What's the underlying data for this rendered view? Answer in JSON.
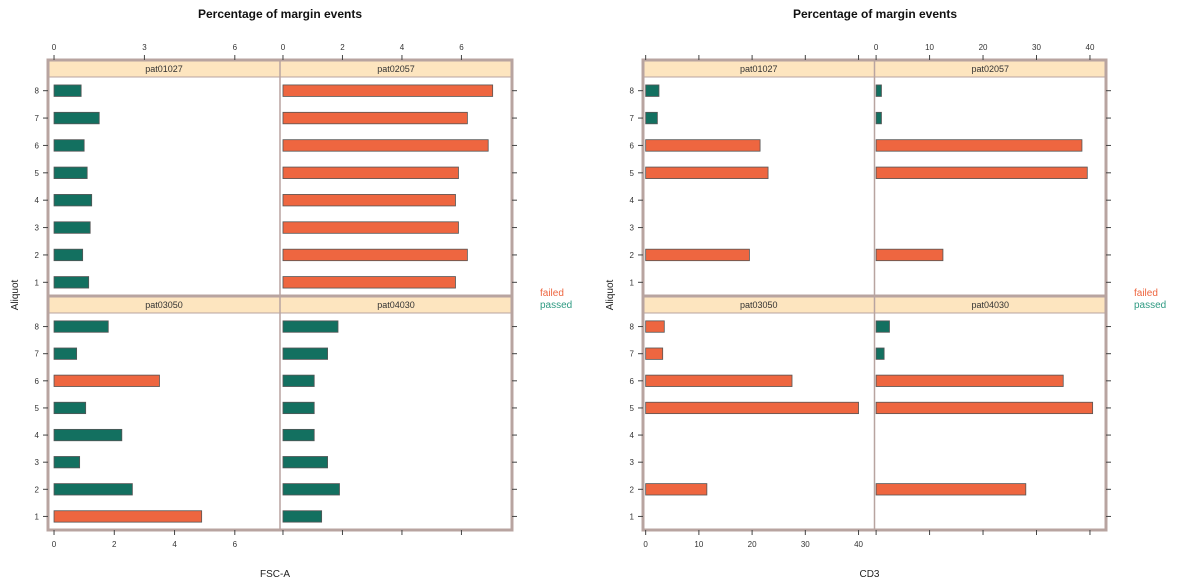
{
  "colors": {
    "failed": "#ee6640",
    "passed": "#137060",
    "strip": "#fde5bf",
    "frame": "#b8a4a0",
    "bar_border": "#555555",
    "legend_failed": "#ee6640",
    "legend_passed": "#2e9a82"
  },
  "legend": {
    "failed": "failed",
    "passed": "passed"
  },
  "chart_data": [
    {
      "type": "bar",
      "orientation": "horizontal",
      "title": "Percentage of margin events",
      "xlabel": "FSC-A",
      "ylabel": "Aliquot",
      "y_categories": [
        "1",
        "2",
        "3",
        "4",
        "5",
        "6",
        "7",
        "8"
      ],
      "panels": [
        {
          "strip": "pat01027",
          "row": 0,
          "col": 0,
          "xlim": [
            -0.2,
            7.5
          ],
          "bars": [
            {
              "aliquot": 8,
              "value": 0.9,
              "status": "passed"
            },
            {
              "aliquot": 7,
              "value": 1.5,
              "status": "passed"
            },
            {
              "aliquot": 6,
              "value": 1.0,
              "status": "passed"
            },
            {
              "aliquot": 5,
              "value": 1.1,
              "status": "passed"
            },
            {
              "aliquot": 4,
              "value": 1.25,
              "status": "passed"
            },
            {
              "aliquot": 3,
              "value": 1.2,
              "status": "passed"
            },
            {
              "aliquot": 2,
              "value": 0.95,
              "status": "passed"
            },
            {
              "aliquot": 1,
              "value": 1.15,
              "status": "passed"
            }
          ]
        },
        {
          "strip": "pat02057",
          "row": 0,
          "col": 1,
          "xlim": [
            -0.1,
            7.7
          ],
          "bars": [
            {
              "aliquot": 8,
              "value": 7.05,
              "status": "failed"
            },
            {
              "aliquot": 7,
              "value": 6.2,
              "status": "failed"
            },
            {
              "aliquot": 6,
              "value": 6.9,
              "status": "failed"
            },
            {
              "aliquot": 5,
              "value": 5.9,
              "status": "failed"
            },
            {
              "aliquot": 4,
              "value": 5.8,
              "status": "failed"
            },
            {
              "aliquot": 3,
              "value": 5.9,
              "status": "failed"
            },
            {
              "aliquot": 2,
              "value": 6.2,
              "status": "failed"
            },
            {
              "aliquot": 1,
              "value": 5.8,
              "status": "failed"
            }
          ]
        },
        {
          "strip": "pat03050",
          "row": 1,
          "col": 0,
          "xlim": [
            -0.2,
            7.5
          ],
          "bars": [
            {
              "aliquot": 8,
              "value": 1.8,
              "status": "passed"
            },
            {
              "aliquot": 7,
              "value": 0.75,
              "status": "passed"
            },
            {
              "aliquot": 6,
              "value": 3.5,
              "status": "failed"
            },
            {
              "aliquot": 5,
              "value": 1.05,
              "status": "passed"
            },
            {
              "aliquot": 4,
              "value": 2.25,
              "status": "passed"
            },
            {
              "aliquot": 3,
              "value": 0.85,
              "status": "passed"
            },
            {
              "aliquot": 2,
              "value": 2.6,
              "status": "passed"
            },
            {
              "aliquot": 1,
              "value": 4.9,
              "status": "failed"
            }
          ]
        },
        {
          "strip": "pat04030",
          "row": 1,
          "col": 1,
          "xlim": [
            -0.1,
            7.7
          ],
          "bars": [
            {
              "aliquot": 8,
              "value": 1.85,
              "status": "passed"
            },
            {
              "aliquot": 7,
              "value": 1.5,
              "status": "passed"
            },
            {
              "aliquot": 6,
              "value": 1.05,
              "status": "passed"
            },
            {
              "aliquot": 5,
              "value": 1.05,
              "status": "passed"
            },
            {
              "aliquot": 4,
              "value": 1.05,
              "status": "passed"
            },
            {
              "aliquot": 3,
              "value": 1.5,
              "status": "passed"
            },
            {
              "aliquot": 2,
              "value": 1.9,
              "status": "passed"
            },
            {
              "aliquot": 1,
              "value": 1.3,
              "status": "passed"
            }
          ]
        }
      ],
      "x_ticks": {
        "top_left": {
          "values": [
            0,
            3,
            6
          ],
          "labels": [
            "0",
            "3",
            "6"
          ]
        },
        "top_right": {
          "values": [
            0,
            2,
            4,
            6
          ],
          "labels": [
            "0",
            "2",
            "4",
            "6"
          ]
        },
        "bottom_left": {
          "values": [
            0,
            2,
            4,
            6
          ],
          "labels": [
            "0",
            "2",
            "4",
            "6"
          ]
        },
        "bottom_right": {
          "values": [
            0,
            2,
            4,
            6
          ],
          "labels": [
            "",
            "",
            "",
            ""
          ]
        }
      },
      "y_ticks_left": [
        "1",
        "2",
        "3",
        "4",
        "5",
        "6",
        "7",
        "8"
      ],
      "y_ticks_right": [
        "1",
        "2",
        "3",
        "4",
        "5",
        "6",
        "7",
        "8"
      ]
    },
    {
      "type": "bar",
      "orientation": "horizontal",
      "title": "Percentage of margin events",
      "xlabel": "CD3",
      "ylabel": "Aliquot",
      "y_categories": [
        "1",
        "2",
        "3",
        "4",
        "5",
        "6",
        "7",
        "8"
      ],
      "panels": [
        {
          "strip": "pat01027",
          "row": 0,
          "col": 0,
          "xlim": [
            -0.5,
            43
          ],
          "bars": [
            {
              "aliquot": 8,
              "value": 2.5,
              "status": "passed"
            },
            {
              "aliquot": 7,
              "value": 2.2,
              "status": "passed"
            },
            {
              "aliquot": 6,
              "value": 21.5,
              "status": "failed"
            },
            {
              "aliquot": 5,
              "value": 23,
              "status": "failed"
            },
            {
              "aliquot": 2,
              "value": 19.5,
              "status": "failed"
            }
          ]
        },
        {
          "strip": "pat02057",
          "row": 0,
          "col": 1,
          "xlim": [
            -0.3,
            43
          ],
          "bars": [
            {
              "aliquot": 8,
              "value": 1.0,
              "status": "passed"
            },
            {
              "aliquot": 7,
              "value": 1.0,
              "status": "passed"
            },
            {
              "aliquot": 6,
              "value": 38.5,
              "status": "failed"
            },
            {
              "aliquot": 5,
              "value": 39.5,
              "status": "failed"
            },
            {
              "aliquot": 2,
              "value": 12.5,
              "status": "failed"
            }
          ]
        },
        {
          "strip": "pat03050",
          "row": 1,
          "col": 0,
          "xlim": [
            -0.5,
            43
          ],
          "bars": [
            {
              "aliquot": 8,
              "value": 3.5,
              "status": "failed"
            },
            {
              "aliquot": 7,
              "value": 3.2,
              "status": "failed"
            },
            {
              "aliquot": 6,
              "value": 27.5,
              "status": "failed"
            },
            {
              "aliquot": 5,
              "value": 40,
              "status": "failed"
            },
            {
              "aliquot": 2,
              "value": 11.5,
              "status": "failed"
            }
          ]
        },
        {
          "strip": "pat04030",
          "row": 1,
          "col": 1,
          "xlim": [
            -0.3,
            43
          ],
          "bars": [
            {
              "aliquot": 8,
              "value": 2.5,
              "status": "passed"
            },
            {
              "aliquot": 7,
              "value": 1.5,
              "status": "passed"
            },
            {
              "aliquot": 6,
              "value": 35,
              "status": "failed"
            },
            {
              "aliquot": 5,
              "value": 40.5,
              "status": "failed"
            },
            {
              "aliquot": 2,
              "value": 28,
              "status": "failed"
            }
          ]
        }
      ],
      "x_ticks": {
        "top_left": {
          "values": [
            0,
            10,
            20,
            30,
            40
          ],
          "labels": [
            "",
            "",
            "",
            "",
            ""
          ]
        },
        "top_right": {
          "values": [
            0,
            10,
            20,
            30,
            40
          ],
          "labels": [
            "0",
            "10",
            "20",
            "30",
            "40"
          ]
        },
        "bottom_left": {
          "values": [
            0,
            10,
            20,
            30,
            40
          ],
          "labels": [
            "0",
            "10",
            "20",
            "30",
            "40"
          ]
        },
        "bottom_right": {
          "values": [
            0,
            10,
            20,
            30,
            40
          ],
          "labels": [
            "",
            "",
            "",
            "",
            ""
          ]
        }
      },
      "y_ticks_left": [
        "1",
        "2",
        "3",
        "4",
        "5",
        "6",
        "7",
        "8"
      ],
      "y_ticks_right": [
        "1",
        "2",
        "3",
        "4",
        "5",
        "6",
        "7",
        "8"
      ]
    }
  ]
}
